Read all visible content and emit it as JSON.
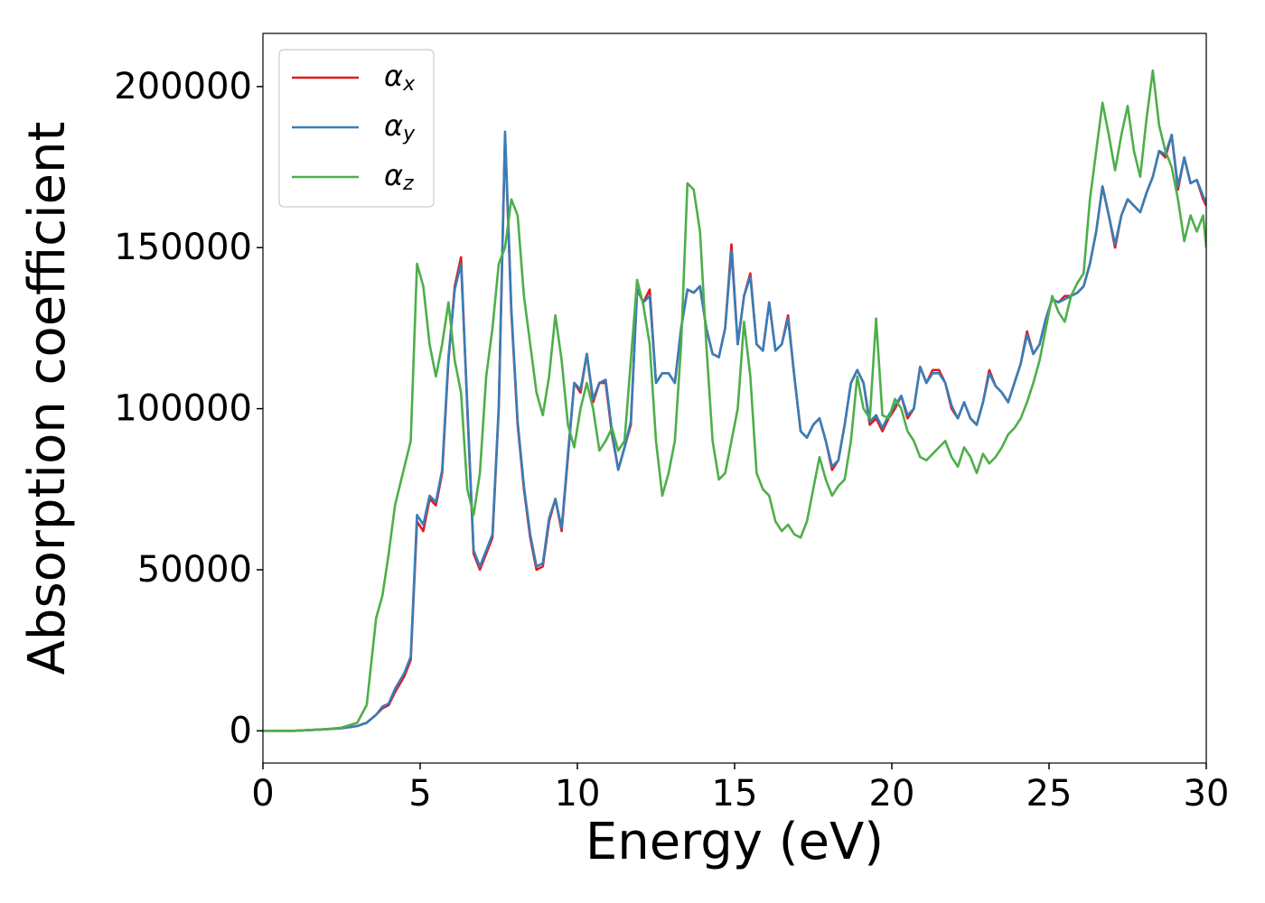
{
  "chart_data": {
    "type": "line",
    "xlabel": "Energy (eV)",
    "ylabel": "Absorption coefficient",
    "x": [
      0,
      1,
      2,
      2.5,
      3,
      3.3,
      3.6,
      3.8,
      4,
      4.2,
      4.5,
      4.7,
      4.9,
      5.1,
      5.3,
      5.5,
      5.7,
      5.9,
      6.1,
      6.3,
      6.5,
      6.7,
      6.9,
      7.1,
      7.3,
      7.5,
      7.7,
      7.9,
      8.1,
      8.3,
      8.5,
      8.7,
      8.9,
      9.1,
      9.3,
      9.5,
      9.7,
      9.9,
      10.1,
      10.3,
      10.5,
      10.7,
      10.9,
      11.1,
      11.3,
      11.5,
      11.7,
      11.9,
      12.1,
      12.3,
      12.5,
      12.7,
      12.9,
      13.1,
      13.3,
      13.5,
      13.7,
      13.9,
      14.1,
      14.3,
      14.5,
      14.7,
      14.9,
      15.1,
      15.3,
      15.5,
      15.7,
      15.9,
      16.1,
      16.3,
      16.5,
      16.7,
      16.9,
      17.1,
      17.3,
      17.5,
      17.7,
      17.9,
      18.1,
      18.3,
      18.5,
      18.7,
      18.9,
      19.1,
      19.3,
      19.5,
      19.7,
      19.9,
      20.1,
      20.3,
      20.5,
      20.7,
      20.9,
      21.1,
      21.3,
      21.5,
      21.7,
      21.9,
      22.1,
      22.3,
      22.5,
      22.7,
      22.9,
      23.1,
      23.3,
      23.5,
      23.7,
      23.9,
      24.1,
      24.3,
      24.5,
      24.7,
      24.9,
      25.1,
      25.3,
      25.5,
      25.7,
      25.9,
      26.1,
      26.3,
      26.5,
      26.7,
      26.9,
      27.1,
      27.3,
      27.5,
      27.7,
      27.9,
      28.1,
      28.3,
      28.5,
      28.7,
      28.9,
      29.1,
      29.3,
      29.5,
      29.7,
      29.9,
      30
    ],
    "series": [
      {
        "name": "αx",
        "color": "#e41a1c",
        "values": [
          0,
          0,
          500,
          800,
          1500,
          2500,
          5000,
          7000,
          8000,
          12000,
          17000,
          22000,
          65000,
          62000,
          72000,
          70000,
          80000,
          115000,
          138000,
          147000,
          100000,
          55000,
          50000,
          55000,
          60000,
          100000,
          185000,
          130000,
          95000,
          75000,
          60000,
          50000,
          51000,
          65000,
          72000,
          62000,
          85000,
          108000,
          105000,
          117000,
          102000,
          108000,
          108000,
          92000,
          81000,
          88000,
          95000,
          137000,
          133000,
          137000,
          108000,
          111000,
          111000,
          108000,
          125000,
          137000,
          136000,
          138000,
          125000,
          117000,
          116000,
          125000,
          151000,
          120000,
          135000,
          142000,
          120000,
          118000,
          133000,
          118000,
          120000,
          129000,
          110000,
          93000,
          91000,
          95000,
          97000,
          90000,
          81000,
          84000,
          95000,
          108000,
          112000,
          108000,
          95000,
          97000,
          93000,
          97000,
          100000,
          104000,
          97000,
          100000,
          113000,
          108000,
          112000,
          112000,
          108000,
          100000,
          97000,
          102000,
          97000,
          95000,
          102000,
          112000,
          107000,
          105000,
          102000,
          108000,
          114000,
          124000,
          117000,
          120000,
          128000,
          134000,
          133000,
          135000,
          135000,
          136000,
          138000,
          145000,
          155000,
          169000,
          160000,
          150000,
          160000,
          165000,
          163000,
          161000,
          167000,
          172000,
          180000,
          178000,
          185000,
          168000,
          178000,
          170000,
          171000,
          165000,
          163000
        ]
      },
      {
        "name": "αy",
        "color": "#377eb8",
        "values": [
          0,
          0,
          500,
          800,
          1500,
          2500,
          5000,
          7500,
          8500,
          13000,
          18000,
          23000,
          67000,
          64000,
          73000,
          71000,
          81000,
          116000,
          137000,
          145000,
          101000,
          56000,
          51000,
          56000,
          61000,
          101000,
          186000,
          131000,
          96000,
          76000,
          61000,
          51000,
          52000,
          66000,
          72000,
          63000,
          86000,
          108000,
          106000,
          117000,
          103000,
          108000,
          109000,
          93000,
          81000,
          88000,
          96000,
          137000,
          133000,
          135000,
          108000,
          111000,
          111000,
          108000,
          125000,
          137000,
          136000,
          138000,
          125000,
          117000,
          116000,
          125000,
          149000,
          120000,
          135000,
          141000,
          120000,
          118000,
          133000,
          118000,
          120000,
          128000,
          110000,
          93000,
          91000,
          95000,
          97000,
          90000,
          82000,
          84000,
          95000,
          108000,
          112000,
          108000,
          96000,
          98000,
          94000,
          98000,
          101000,
          104000,
          98000,
          100000,
          113000,
          108000,
          111000,
          111000,
          108000,
          101000,
          97000,
          102000,
          97000,
          95000,
          102000,
          111000,
          107000,
          105000,
          102000,
          108000,
          114000,
          123000,
          117000,
          120000,
          128000,
          134000,
          133000,
          134000,
          135000,
          136000,
          138000,
          145000,
          155000,
          169000,
          160000,
          151000,
          160000,
          165000,
          163000,
          161000,
          167000,
          172000,
          180000,
          179000,
          185000,
          169000,
          178000,
          170000,
          171000,
          166000,
          164000
        ]
      },
      {
        "name": "αz",
        "color": "#4daf4a",
        "values": [
          0,
          0,
          500,
          1000,
          2500,
          8000,
          35000,
          42000,
          55000,
          70000,
          82000,
          90000,
          145000,
          138000,
          120000,
          110000,
          120000,
          133000,
          115000,
          105000,
          75000,
          67000,
          80000,
          110000,
          125000,
          145000,
          150000,
          165000,
          160000,
          135000,
          120000,
          105000,
          98000,
          110000,
          129000,
          115000,
          95000,
          88000,
          100000,
          108000,
          100000,
          87000,
          90000,
          94000,
          87000,
          90000,
          115000,
          140000,
          132000,
          120000,
          90000,
          73000,
          80000,
          90000,
          120000,
          170000,
          168000,
          155000,
          120000,
          90000,
          78000,
          80000,
          90000,
          100000,
          127000,
          110000,
          80000,
          75000,
          73000,
          65000,
          62000,
          64000,
          61000,
          60000,
          65000,
          75000,
          85000,
          78000,
          73000,
          76000,
          78000,
          90000,
          110000,
          100000,
          97000,
          128000,
          98000,
          97000,
          103000,
          100000,
          93000,
          90000,
          85000,
          84000,
          86000,
          88000,
          90000,
          85000,
          82000,
          88000,
          85000,
          80000,
          86000,
          83000,
          85000,
          88000,
          92000,
          94000,
          97000,
          102000,
          108000,
          115000,
          125000,
          135000,
          130000,
          127000,
          135000,
          139000,
          142000,
          165000,
          180000,
          195000,
          185000,
          174000,
          185000,
          194000,
          180000,
          172000,
          190000,
          205000,
          188000,
          180000,
          175000,
          165000,
          152000,
          160000,
          155000,
          160000,
          150000
        ]
      }
    ],
    "xlim": [
      0,
      30
    ],
    "xticks": [
      0,
      5,
      10,
      15,
      20,
      25,
      30
    ],
    "ylim": [
      -10000,
      216500
    ],
    "yticks": [
      0,
      50000,
      100000,
      150000,
      200000
    ],
    "legend": "upper left",
    "grid": false
  }
}
